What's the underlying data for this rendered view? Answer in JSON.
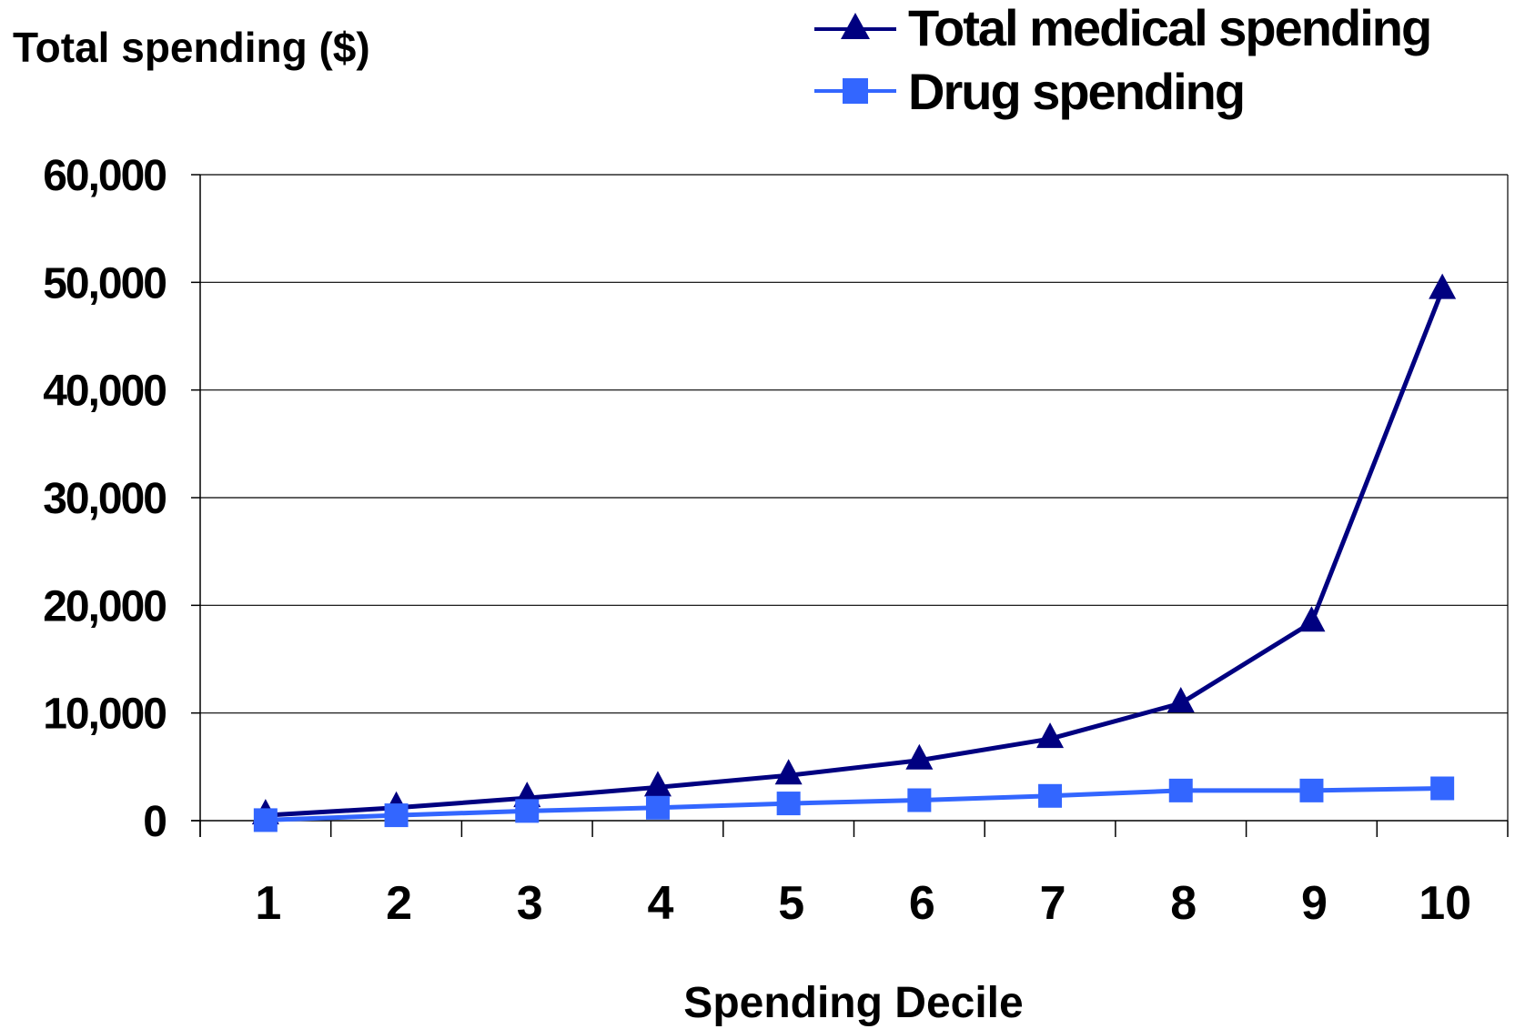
{
  "chart_data": {
    "type": "line",
    "title": "",
    "ylabel": "Total spending ($)",
    "xlabel": "Spending Decile",
    "categories": [
      "1",
      "2",
      "3",
      "4",
      "5",
      "6",
      "7",
      "8",
      "9",
      "10"
    ],
    "ylim": [
      0,
      60000
    ],
    "yticks": [
      0,
      10000,
      20000,
      30000,
      40000,
      50000,
      60000
    ],
    "ytick_labels": [
      "0",
      "10,000",
      "20,000",
      "30,000",
      "40,000",
      "50,000",
      "60,000"
    ],
    "grid": true,
    "legend_position": "top-right",
    "series": [
      {
        "name": "Total medical spending",
        "marker": "triangle",
        "color": "#000080",
        "values": [
          500,
          1200,
          2100,
          3100,
          4200,
          5600,
          7600,
          10900,
          18400,
          49300
        ]
      },
      {
        "name": "Drug spending",
        "marker": "square",
        "color": "#3366FF",
        "values": [
          50,
          500,
          900,
          1200,
          1600,
          1900,
          2300,
          2800,
          2800,
          3000
        ]
      }
    ]
  }
}
